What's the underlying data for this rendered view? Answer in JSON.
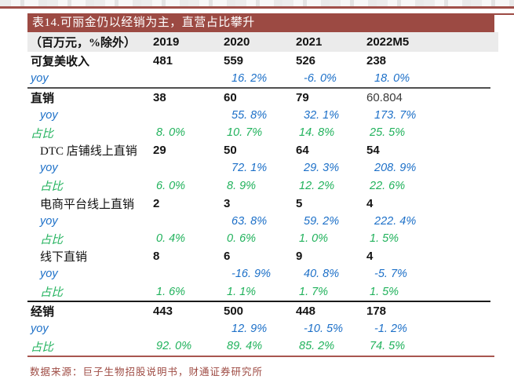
{
  "colors": {
    "accent_maroon": "#9c4a43",
    "top_rule_red": "#a0504a",
    "bottom_rule_red": "#a8564f",
    "header_bg": "#ebebeb",
    "yoy_blue": "#1d70c8",
    "share_green": "#21b25c",
    "text_black": "#151515"
  },
  "table": {
    "title": "表14.可丽金仍以经销为主，直营占比攀升",
    "unit_label": "（百万元，%除外）",
    "columns": [
      "2019",
      "2020",
      "2021",
      "2022M5"
    ],
    "rows": [
      {
        "label": "可复美收入",
        "type": "main",
        "indent": 0,
        "values": [
          "481",
          "559",
          "526",
          "238"
        ]
      },
      {
        "label": "yoy",
        "type": "yoy",
        "indent": 0,
        "values": [
          "",
          "16. 2%",
          "-6. 0%",
          "18. 0%"
        ]
      },
      {
        "label": "直销",
        "type": "main",
        "indent": 0,
        "sep_before": "gray",
        "values": [
          "38",
          "60",
          "79",
          "60.804"
        ],
        "plain": [
          3
        ]
      },
      {
        "label": "yoy",
        "type": "yoy",
        "indent": 1,
        "values": [
          "",
          "55. 8%",
          "32. 1%",
          "173. 7%"
        ]
      },
      {
        "label": "占比",
        "type": "share",
        "indent": 0,
        "values": [
          "8. 0%",
          "10. 7%",
          "14. 8%",
          "25. 5%"
        ]
      },
      {
        "label": "DTC 店铺线上直销",
        "type": "sub",
        "indent": 1,
        "values": [
          "29",
          "50",
          "64",
          "54"
        ]
      },
      {
        "label": "yoy",
        "type": "yoy",
        "indent": 1,
        "values": [
          "",
          "72. 1%",
          "29. 3%",
          "208. 9%"
        ]
      },
      {
        "label": "占比",
        "type": "share",
        "indent": 1,
        "values": [
          "6. 0%",
          "8. 9%",
          "12. 2%",
          "22. 6%"
        ]
      },
      {
        "label": "电商平台线上直销",
        "type": "sub",
        "indent": 1,
        "values": [
          "2",
          "3",
          "5",
          "4"
        ]
      },
      {
        "label": "yoy",
        "type": "yoy",
        "indent": 1,
        "values": [
          "",
          "63. 8%",
          "59. 2%",
          "222. 4%"
        ]
      },
      {
        "label": "占比",
        "type": "share",
        "indent": 1,
        "values": [
          "0. 4%",
          "0. 6%",
          "1. 0%",
          "1. 5%"
        ]
      },
      {
        "label": "线下直销",
        "type": "sub",
        "indent": 1,
        "values": [
          "8",
          "6",
          "9",
          "4"
        ]
      },
      {
        "label": "yoy",
        "type": "yoy",
        "indent": 1,
        "values": [
          "",
          "-16. 9%",
          "40. 8%",
          "-5. 7%"
        ]
      },
      {
        "label": "占比",
        "type": "share",
        "indent": 1,
        "values": [
          "1. 6%",
          "1. 1%",
          "1. 7%",
          "1. 5%"
        ]
      },
      {
        "label": "经销",
        "type": "main",
        "indent": 0,
        "sep_before": "black",
        "values": [
          "443",
          "500",
          "448",
          "178"
        ]
      },
      {
        "label": "yoy",
        "type": "yoy",
        "indent": 0,
        "values": [
          "",
          "12. 9%",
          "-10. 5%",
          "-1. 2%"
        ]
      },
      {
        "label": "占比",
        "type": "share",
        "indent": 0,
        "values": [
          "92. 0%",
          "89. 4%",
          "85. 2%",
          "74. 5%"
        ]
      }
    ],
    "source_note": "数据来源：巨子生物招股说明书，财通证券研究所"
  }
}
